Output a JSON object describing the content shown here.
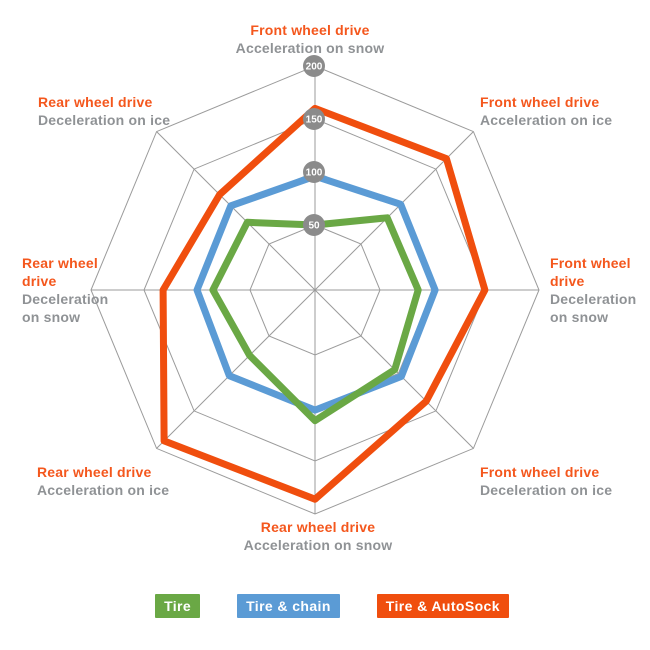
{
  "chart_data": {
    "type": "radar",
    "axis_range": [
      0,
      200
    ],
    "ticks": [
      50,
      100,
      150,
      200
    ],
    "grid": "octagonal, 8 spokes, 4 rings",
    "legend_position": "bottom",
    "axes": [
      {
        "id": "fwd-accel-snow",
        "title": "Front wheel drive",
        "subtitle": "Acceleration on snow"
      },
      {
        "id": "fwd-accel-ice",
        "title": "Front wheel drive",
        "subtitle": "Acceleration on ice"
      },
      {
        "id": "fwd-decel-snow",
        "title": "Front wheel drive",
        "subtitle": "Deceleration on snow"
      },
      {
        "id": "fwd-decel-ice",
        "title": "Front wheel drive",
        "subtitle": "Deceleration on ice"
      },
      {
        "id": "rwd-accel-snow",
        "title": "Rear wheel drive",
        "subtitle": "Acceleration on snow"
      },
      {
        "id": "rwd-accel-ice",
        "title": "Rear wheel drive",
        "subtitle": "Acceleration on ice"
      },
      {
        "id": "rwd-decel-snow",
        "title": "Rear wheel drive",
        "subtitle": "Deceleration on snow"
      },
      {
        "id": "rwd-decel-ice",
        "title": "Rear wheel drive",
        "subtitle": "Deceleration on ice"
      }
    ],
    "series": [
      {
        "name": "Tire",
        "slug": "tire",
        "color": "#6aa845",
        "values": [
          50,
          85,
          86,
          95,
          112,
          76,
          85,
          79
        ]
      },
      {
        "name": "Tire & chain",
        "slug": "tire-chain",
        "color": "#5b9bd5",
        "values": [
          96,
          103,
          102,
          104,
          102,
          103,
          100,
          101
        ]
      },
      {
        "name": "Tire & AutoSock",
        "slug": "tire-autosock",
        "color": "#f04e0e",
        "values": [
          160,
          164,
          149,
          137,
          186,
          190,
          132,
          116
        ]
      }
    ],
    "colors": {
      "grid": "#9b9b9b",
      "tick_badge": "#8b8b8b",
      "tick_text": "#ffffff",
      "axis_title": "#f4571d",
      "axis_subtitle": "#8f9295"
    }
  },
  "legend": {
    "items": [
      {
        "label": "Tire",
        "color": "#6aa845"
      },
      {
        "label": "Tire & chain",
        "color": "#5b9bd5"
      },
      {
        "label": "Tire & AutoSock",
        "color": "#f04e0e"
      }
    ]
  }
}
